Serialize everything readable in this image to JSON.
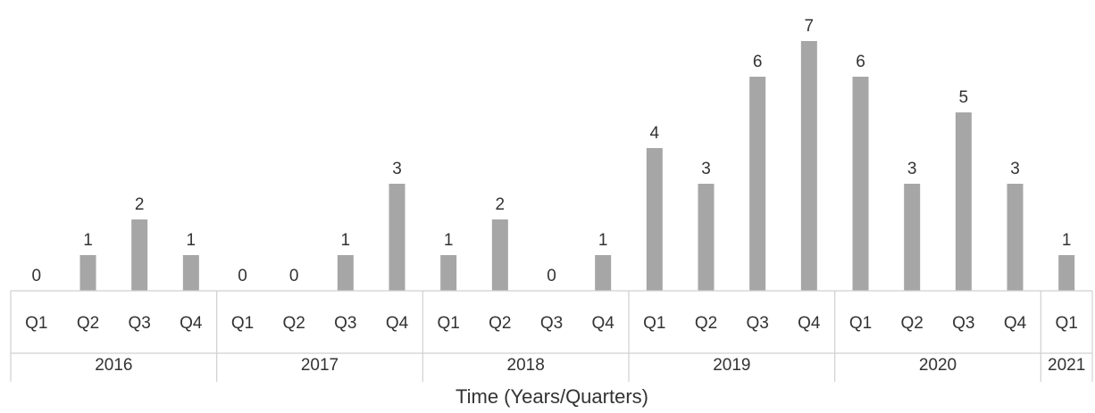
{
  "chart_data": {
    "type": "bar",
    "title": "",
    "ylabel": "",
    "xlabel": "Time (Years/Quarters)",
    "ylim": [
      0,
      7
    ],
    "grid": false,
    "legend": "none",
    "bar_color": "#a6a6a6",
    "groups": [
      {
        "label": "2016",
        "quarters": [
          "Q1",
          "Q2",
          "Q3",
          "Q4"
        ],
        "values": [
          0,
          1,
          2,
          1
        ]
      },
      {
        "label": "2017",
        "quarters": [
          "Q1",
          "Q2",
          "Q3",
          "Q4"
        ],
        "values": [
          0,
          0,
          1,
          3
        ]
      },
      {
        "label": "2018",
        "quarters": [
          "Q1",
          "Q2",
          "Q3",
          "Q4"
        ],
        "values": [
          1,
          2,
          0,
          1
        ]
      },
      {
        "label": "2019",
        "quarters": [
          "Q1",
          "Q2",
          "Q3",
          "Q4"
        ],
        "values": [
          4,
          3,
          6,
          7
        ]
      },
      {
        "label": "2020",
        "quarters": [
          "Q1",
          "Q2",
          "Q3",
          "Q4"
        ],
        "values": [
          6,
          3,
          5,
          3
        ]
      },
      {
        "label": "2021",
        "quarters": [
          "Q1"
        ],
        "values": [
          1
        ]
      }
    ]
  }
}
